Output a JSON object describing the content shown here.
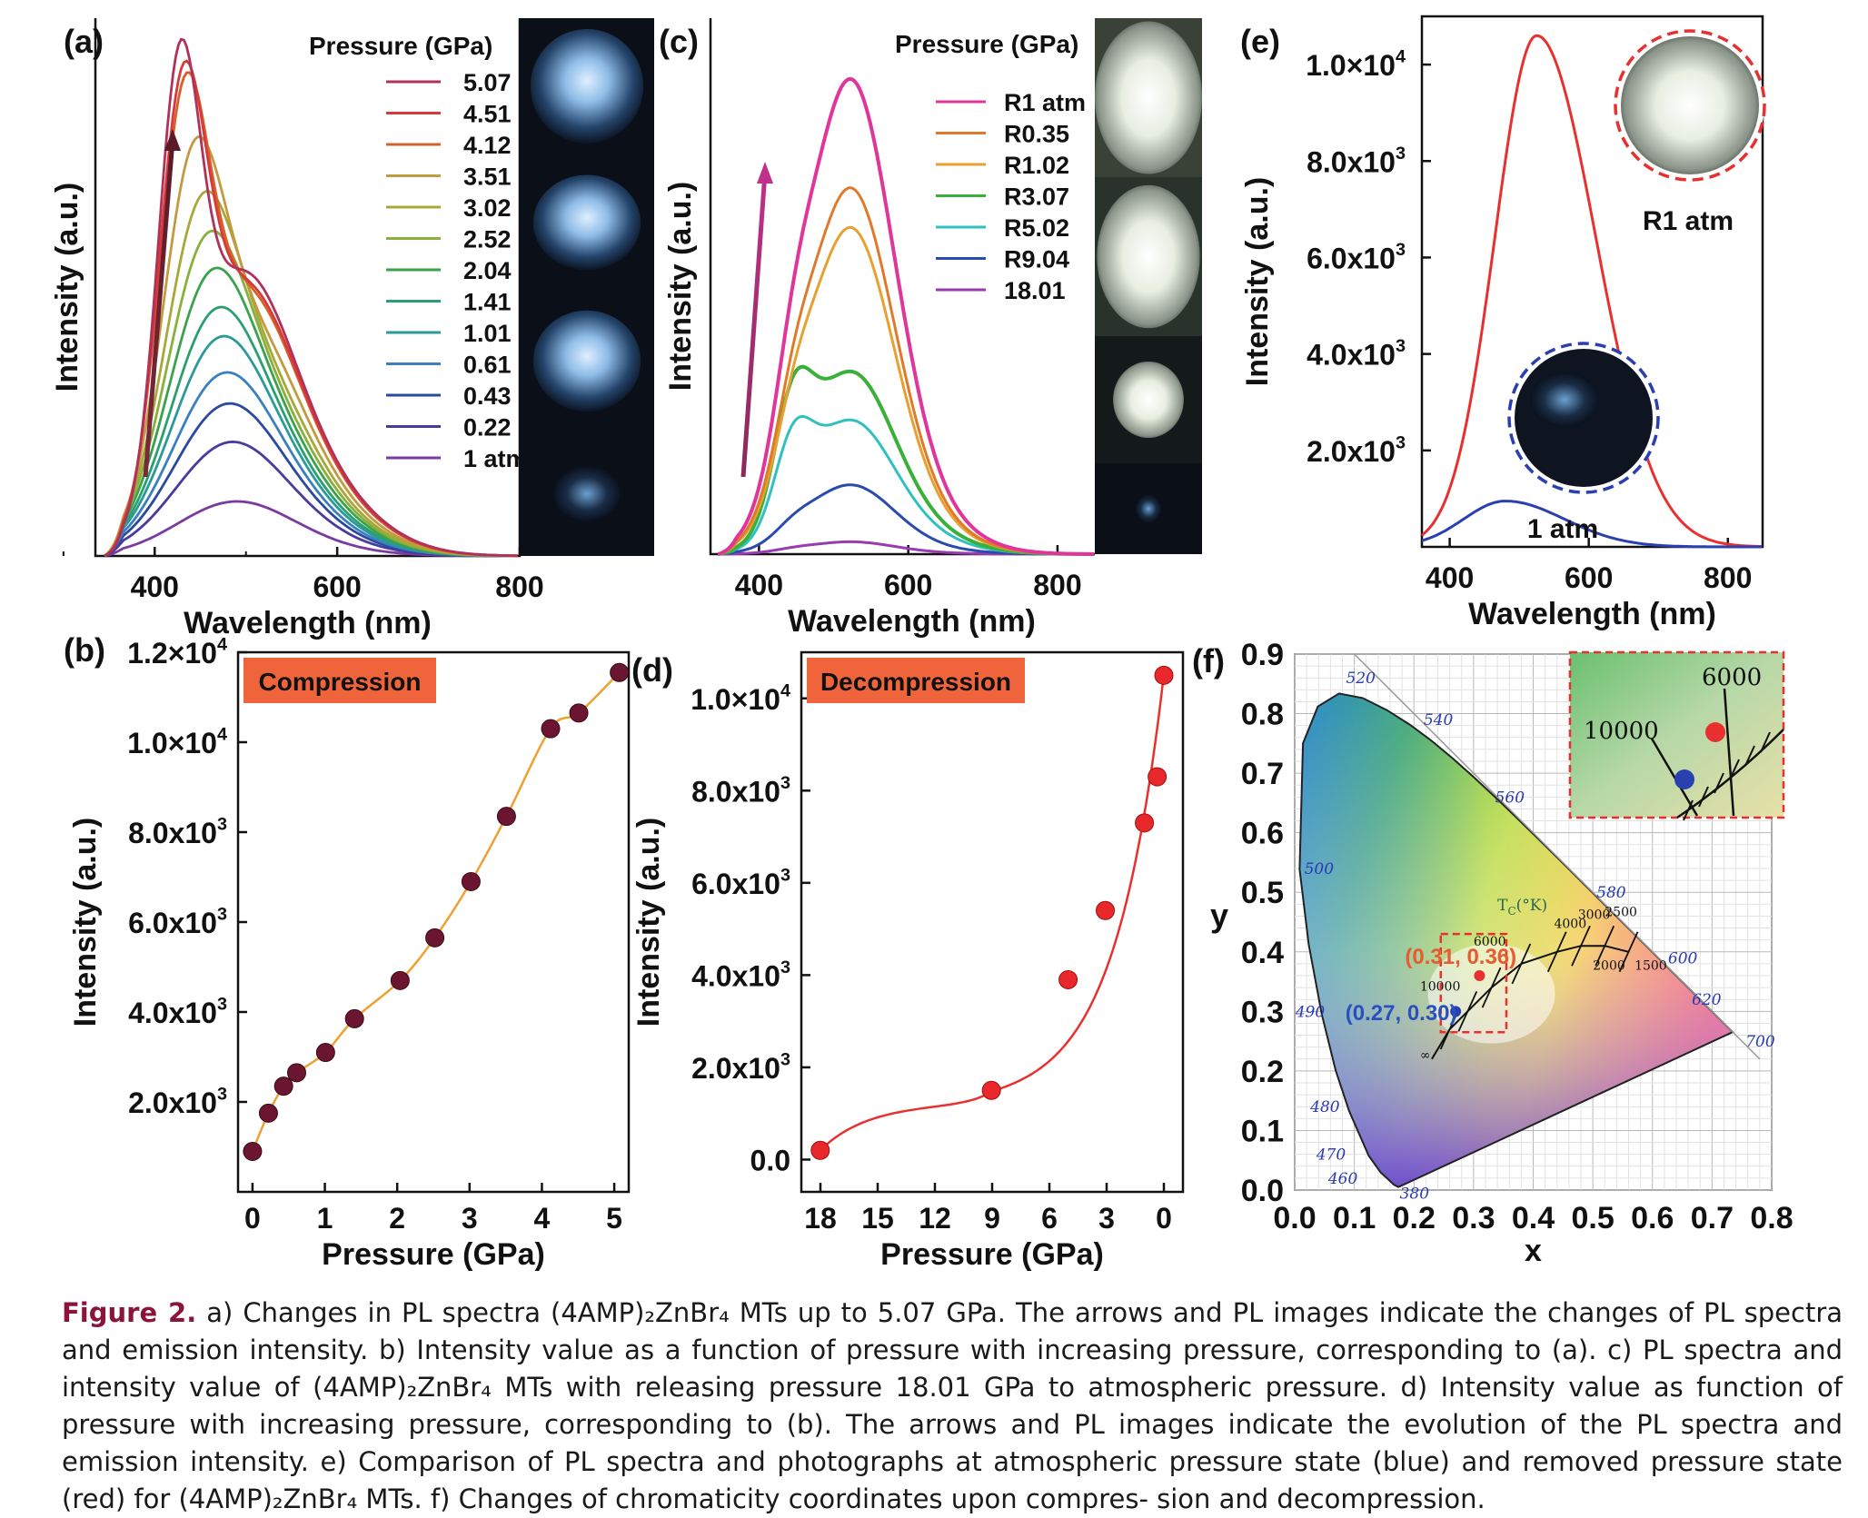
{
  "chart_data": [
    {
      "panel": "(a)",
      "type": "line",
      "xlabel": "Wavelength (nm)",
      "ylabel": "Intensity (a.u.)",
      "xlim": [
        335,
        800
      ],
      "x_ticks": [
        400,
        600,
        800
      ],
      "legend_title": "Pressure (GPa)",
      "peak_wavelength_nm": 425,
      "series": [
        {
          "name": "5.07",
          "color": "#b0325a",
          "peak": 0.98
        },
        {
          "name": "4.51",
          "color": "#d83a3a",
          "peak": 0.92
        },
        {
          "name": "4.12",
          "color": "#d8602a",
          "peak": 0.89
        },
        {
          "name": "3.51",
          "color": "#c49a3e",
          "peak": 0.73
        },
        {
          "name": "3.02",
          "color": "#a8a83a",
          "peak": 0.61
        },
        {
          "name": "2.52",
          "color": "#88b03a",
          "peak": 0.53
        },
        {
          "name": "2.04",
          "color": "#3aa24a",
          "peak": 0.46
        },
        {
          "name": "1.41",
          "color": "#2aa070",
          "peak": 0.39
        },
        {
          "name": "1.01",
          "color": "#2a9a9a",
          "peak": 0.34
        },
        {
          "name": "0.61",
          "color": "#3a80c0",
          "peak": 0.28
        },
        {
          "name": "0.43",
          "color": "#2a4aa0",
          "peak": 0.23
        },
        {
          "name": "0.22",
          "color": "#4a3aa0",
          "peak": 0.17
        },
        {
          "name": "1 atm",
          "color": "#7a3aa0",
          "peak": 0.08
        }
      ]
    },
    {
      "panel": "(b)",
      "type": "scatter",
      "label": "Compression",
      "xlabel": "Pressure (GPa)",
      "ylabel": "Intensity (a.u.)",
      "xlim": [
        -0.2,
        5.2
      ],
      "ylim": [
        0,
        12000
      ],
      "x_ticks": [
        "0",
        "1",
        "2",
        "3",
        "4",
        "5"
      ],
      "y_ticks": [
        "2.0x10",
        "4.0x10",
        "6.0x10",
        "8.0x10",
        "1.0×10",
        "1.2×10"
      ],
      "y_tick_values": [
        2000,
        4000,
        6000,
        8000,
        10000,
        12000
      ],
      "y_tick_exponents": [
        "3",
        "3",
        "3",
        "3",
        "4",
        "4"
      ],
      "x": [
        0.0,
        0.22,
        0.43,
        0.61,
        1.01,
        1.41,
        2.04,
        2.52,
        3.02,
        3.51,
        4.12,
        4.51,
        5.07
      ],
      "y": [
        900,
        1750,
        2350,
        2650,
        3100,
        3850,
        4700,
        5650,
        6900,
        8350,
        10300,
        10650,
        11550
      ],
      "point_color": "#6b1530",
      "fit_color": "#f0a030"
    },
    {
      "panel": "(c)",
      "type": "line",
      "xlabel": "Wavelength (nm)",
      "ylabel": "Intensity (a.u.)",
      "xlim": [
        335,
        850
      ],
      "x_ticks": [
        400,
        600,
        800
      ],
      "legend_title": "Pressure (GPa)",
      "series": [
        {
          "name": "R1 atm",
          "color": "#e0359a",
          "peak": 0.96
        },
        {
          "name": "R0.35",
          "color": "#e07a2a",
          "peak": 0.74
        },
        {
          "name": "R1.02",
          "color": "#e8a030",
          "peak": 0.66
        },
        {
          "name": "R3.07",
          "color": "#3ab03a",
          "peak": 0.49
        },
        {
          "name": "R5.02",
          "color": "#30c0c0",
          "peak": 0.36
        },
        {
          "name": "R9.04",
          "color": "#2a4ab0",
          "peak": 0.14
        },
        {
          "name": "18.01",
          "color": "#9a3ab0",
          "peak": 0.025
        }
      ]
    },
    {
      "panel": "(d)",
      "type": "scatter",
      "label": "Decompression",
      "xlabel": "Pressure (GPa)",
      "ylabel": "Intensity (a.u.)",
      "xlim": [
        19,
        -1
      ],
      "ylim": [
        0,
        11000
      ],
      "x_ticks": [
        "18",
        "15",
        "12",
        "9",
        "6",
        "3",
        "0"
      ],
      "y_ticks": [
        "0.0",
        "2.0x10",
        "4.0x10",
        "6.0x10",
        "8.0x10",
        "1.0×10"
      ],
      "y_tick_values": [
        0,
        2000,
        4000,
        6000,
        8000,
        10000
      ],
      "y_tick_exponents": [
        "",
        "3",
        "3",
        "3",
        "3",
        "4"
      ],
      "x": [
        18.01,
        9.04,
        5.02,
        3.07,
        1.02,
        0.35,
        0.0
      ],
      "y": [
        200,
        1500,
        3900,
        5400,
        7300,
        8300,
        10500
      ],
      "point_color": "#e8282a",
      "fit_color": "#e83030"
    },
    {
      "panel": "(e)",
      "type": "line",
      "xlabel": "Wavelength (nm)",
      "ylabel": "Intensity (a.u.)",
      "xlim": [
        360,
        850
      ],
      "ylim": [
        0,
        11000
      ],
      "x_ticks": [
        400,
        600,
        800
      ],
      "y_ticks": [
        "2.0x10",
        "4.0x10",
        "6.0x10",
        "8.0x10",
        "1.0×10"
      ],
      "y_tick_values": [
        2000,
        4000,
        6000,
        8000,
        10000
      ],
      "y_tick_exponents": [
        "3",
        "3",
        "3",
        "3",
        "4"
      ],
      "series": [
        {
          "name": "R1 atm",
          "color": "#e83030",
          "peak_x": 525,
          "peak": 10600
        },
        {
          "name": "1 atm",
          "color": "#2a40b0",
          "peak_x": 480,
          "peak": 950
        }
      ]
    },
    {
      "panel": "(f)",
      "type": "scatter",
      "xlabel": "x",
      "ylabel": "y",
      "xlim": [
        0,
        0.8
      ],
      "ylim": [
        0,
        0.9
      ],
      "x_ticks": [
        "0.0",
        "0.1",
        "0.2",
        "0.3",
        "0.4",
        "0.5",
        "0.6",
        "0.7",
        "0.8"
      ],
      "y_ticks": [
        "0.0",
        "0.1",
        "0.2",
        "0.3",
        "0.4",
        "0.5",
        "0.6",
        "0.7",
        "0.8",
        "0.9"
      ],
      "points": [
        {
          "label": "(0.31, 0.36)",
          "x": 0.31,
          "y": 0.36,
          "color": "#e83030"
        },
        {
          "label": "(0.27, 0.30)",
          "x": 0.27,
          "y": 0.3,
          "color": "#2a40b0"
        }
      ],
      "wavelength_labels": [
        "520",
        "540",
        "560",
        "580",
        "600",
        "620",
        "700",
        "500",
        "490",
        "480",
        "470",
        "460",
        "380"
      ],
      "planckian_label": "T",
      "planckian_label_sub": "C",
      "planckian_label_unit": "(°K)",
      "temperature_labels": [
        "4000",
        "3000",
        "2500",
        "2000",
        "1500",
        "6000",
        "10000",
        "∞"
      ],
      "inset_labels": [
        "6000",
        "10000"
      ]
    }
  ],
  "panel_labels": [
    "(a)",
    "(b)",
    "(c)",
    "(d)",
    "(e)",
    "(f)"
  ],
  "caption": {
    "bold": "Figure 2.",
    "lines": [
      "a) Changes in PL spectra (4AMP)₂ZnBr₄ MTs up to 5.07 GPa. The arrows and PL images indicate the changes of PL spectra and emission",
      "intensity. b) Intensity value as a function of pressure with increasing pressure, corresponding to (a). c) PL spectra and intensity value of (4AMP)₂ZnBr₄",
      "MTs with releasing pressure 18.01 GPa to atmospheric pressure. d) Intensity value as function of pressure with increasing pressure, corresponding",
      "to (b). The arrows and PL images indicate the evolution of the PL spectra and emission intensity. e) Comparison of PL spectra and photographs at",
      "atmospheric pressure state (blue) and removed pressure state (red) for (4AMP)₂ZnBr₄ MTs. f) Changes of chromaticity coordinates upon compres-",
      "sion and decompression."
    ]
  }
}
